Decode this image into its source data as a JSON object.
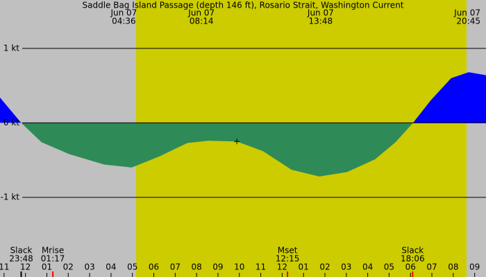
{
  "chart_data": {
    "type": "area",
    "title": "Saddle Bag Island Passage (depth 146 ft), Rosario Strait, Washington Current",
    "x": [
      -0.19,
      0.8,
      1.75,
      3.05,
      4.68,
      5.97,
      7.27,
      8.57,
      9.55,
      10.88,
      12.1,
      13.44,
      14.74,
      16.04,
      17.34,
      18.3,
      19.12,
      19.94,
      20.9,
      21.72,
      22.53
    ],
    "values": [
      0.34,
      0,
      -0.26,
      -0.42,
      -0.56,
      -0.6,
      -0.45,
      -0.27,
      -0.24,
      -0.25,
      -0.38,
      -0.63,
      -0.72,
      -0.66,
      -0.49,
      -0.26,
      0,
      0.3,
      0.6,
      0.68,
      0.64
    ],
    "flood_color": "#0000ff",
    "ebb_color": "#2e8b57",
    "background_color": "#c0c0c0",
    "daylight_color": "#cccc00",
    "daylight": [
      6.17,
      21.62
    ],
    "xlim": [
      -0.19,
      22.53
    ],
    "ylim": [
      -2.07,
      1.65
    ],
    "xticks": [
      {
        "value": 0,
        "label": "11"
      },
      {
        "value": 1,
        "label": "12"
      },
      {
        "value": 2,
        "label": "01"
      },
      {
        "value": 3,
        "label": "02"
      },
      {
        "value": 4,
        "label": "03"
      },
      {
        "value": 5,
        "label": "04"
      },
      {
        "value": 6,
        "label": "05"
      },
      {
        "value": 7,
        "label": "06"
      },
      {
        "value": 8,
        "label": "07"
      },
      {
        "value": 9,
        "label": "08"
      },
      {
        "value": 10,
        "label": "09"
      },
      {
        "value": 11,
        "label": "10"
      },
      {
        "value": 12,
        "label": "11"
      },
      {
        "value": 13,
        "label": "12"
      },
      {
        "value": 14,
        "label": "01"
      },
      {
        "value": 15,
        "label": "02"
      },
      {
        "value": 16,
        "label": "03"
      },
      {
        "value": 17,
        "label": "04"
      },
      {
        "value": 18,
        "label": "05"
      },
      {
        "value": 19,
        "label": "06"
      },
      {
        "value": 20,
        "label": "07"
      },
      {
        "value": 21,
        "label": "08"
      },
      {
        "value": 22,
        "label": "09"
      }
    ],
    "yticks": [
      {
        "value": 1,
        "label": "1 kt"
      },
      {
        "value": 0,
        "label": "0 kt"
      },
      {
        "value": -1,
        "label": "-1 kt"
      }
    ],
    "extremes": [
      {
        "date": "Jun 07",
        "time": "04:36",
        "x": 5.6
      },
      {
        "date": "Jun 07",
        "time": "08:14",
        "x": 9.23
      },
      {
        "date": "Jun 07",
        "time": "13:48",
        "x": 14.8
      },
      {
        "date": "Jun 07",
        "time": "20:45",
        "x": 21.75
      }
    ],
    "events": [
      {
        "label": "Slack",
        "time": "23:48",
        "x": 0.8,
        "color": "#000000"
      },
      {
        "label": "Mrise",
        "time": "01:17",
        "x": 2.28,
        "color": "#ff0000"
      },
      {
        "label": "Mset",
        "time": "12:15",
        "x": 13.25,
        "color": "#ff0000"
      },
      {
        "label": "Slack",
        "time": "18:06",
        "x": 19.1,
        "color": "#ff0000"
      }
    ],
    "marker": {
      "x": 10.88,
      "y": -0.25
    }
  }
}
